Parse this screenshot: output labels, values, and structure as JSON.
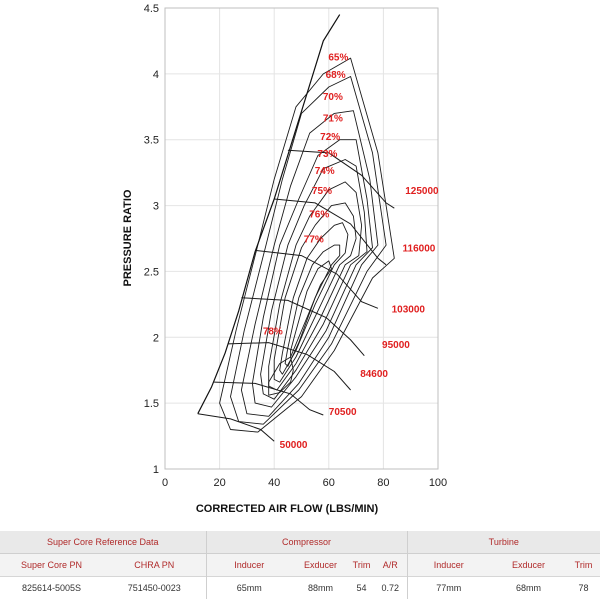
{
  "chart_data": {
    "type": "line",
    "title": "",
    "xlabel": "CORRECTED AIR FLOW (LBS/MIN)",
    "ylabel": "PRESSURE RATIO",
    "xlim": [
      0,
      100
    ],
    "ylim": [
      1,
      4.5
    ],
    "xticks": [
      0,
      20,
      40,
      60,
      80,
      100
    ],
    "yticks": [
      1,
      1.5,
      2,
      2.5,
      3,
      3.5,
      4,
      4.5
    ],
    "grid": true,
    "surge_line": [
      [
        12,
        1.42
      ],
      [
        17,
        1.62
      ],
      [
        22,
        1.88
      ],
      [
        27,
        2.2
      ],
      [
        33,
        2.65
      ],
      [
        40,
        3.05
      ],
      [
        46,
        3.45
      ],
      [
        52,
        3.85
      ],
      [
        58,
        4.25
      ],
      [
        64,
        4.45
      ]
    ],
    "speed_lines": [
      {
        "label": "50000",
        "points": [
          [
            12,
            1.42
          ],
          [
            24,
            1.38
          ],
          [
            35,
            1.3
          ],
          [
            40,
            1.21
          ]
        ]
      },
      {
        "label": "70500",
        "points": [
          [
            18,
            1.66
          ],
          [
            33,
            1.65
          ],
          [
            46,
            1.57
          ],
          [
            53,
            1.45
          ],
          [
            58,
            1.41
          ]
        ]
      },
      {
        "label": "84600",
        "points": [
          [
            23,
            1.95
          ],
          [
            38,
            1.96
          ],
          [
            52,
            1.87
          ],
          [
            62,
            1.74
          ],
          [
            68,
            1.6
          ]
        ]
      },
      {
        "label": "95000",
        "points": [
          [
            28,
            2.3
          ],
          [
            45,
            2.28
          ],
          [
            59,
            2.15
          ],
          [
            68,
            1.98
          ],
          [
            73,
            1.86
          ]
        ]
      },
      {
        "label": "103000",
        "points": [
          [
            33,
            2.66
          ],
          [
            50,
            2.62
          ],
          [
            63,
            2.48
          ],
          [
            72,
            2.27
          ],
          [
            78,
            2.22
          ]
        ]
      },
      {
        "label": "116000",
        "points": [
          [
            40,
            3.05
          ],
          [
            55,
            3.02
          ],
          [
            68,
            2.86
          ],
          [
            78,
            2.6
          ],
          [
            81,
            2.55
          ]
        ]
      },
      {
        "label": "125000",
        "points": [
          [
            45,
            3.42
          ],
          [
            60,
            3.4
          ],
          [
            72,
            3.23
          ],
          [
            81,
            3.02
          ],
          [
            84,
            2.98
          ]
        ]
      }
    ],
    "efficiency_islands": [
      {
        "label": "65%",
        "points": [
          [
            48,
            3.75
          ],
          [
            58,
            4.0
          ],
          [
            68,
            4.12
          ],
          [
            78,
            3.4
          ],
          [
            84,
            2.6
          ],
          [
            76,
            2.45
          ],
          [
            62,
            1.9
          ],
          [
            50,
            1.55
          ],
          [
            34,
            1.28
          ],
          [
            24,
            1.3
          ],
          [
            20,
            1.5
          ],
          [
            26,
            2.05
          ],
          [
            34,
            2.7
          ],
          [
            40,
            3.2
          ]
        ]
      },
      {
        "label": "68%",
        "points": [
          [
            50,
            3.7
          ],
          [
            60,
            3.9
          ],
          [
            68,
            3.98
          ],
          [
            76,
            3.4
          ],
          [
            81,
            2.7
          ],
          [
            74,
            2.5
          ],
          [
            61,
            1.95
          ],
          [
            49,
            1.6
          ],
          [
            36,
            1.34
          ],
          [
            27,
            1.36
          ],
          [
            24,
            1.55
          ],
          [
            29,
            2.05
          ],
          [
            37,
            2.7
          ],
          [
            43,
            3.2
          ]
        ]
      },
      {
        "label": "70%",
        "points": [
          [
            53,
            3.55
          ],
          [
            62,
            3.7
          ],
          [
            69,
            3.72
          ],
          [
            75,
            3.2
          ],
          [
            78,
            2.7
          ],
          [
            72,
            2.55
          ],
          [
            60,
            2.0
          ],
          [
            49,
            1.65
          ],
          [
            38,
            1.4
          ],
          [
            30,
            1.42
          ],
          [
            28,
            1.6
          ],
          [
            33,
            2.1
          ],
          [
            40,
            2.7
          ],
          [
            46,
            3.15
          ]
        ]
      },
      {
        "label": "71%",
        "points": [
          [
            56,
            3.38
          ],
          [
            64,
            3.5
          ],
          [
            70,
            3.5
          ],
          [
            74,
            3.05
          ],
          [
            76,
            2.68
          ],
          [
            70,
            2.55
          ],
          [
            59,
            2.05
          ],
          [
            48,
            1.7
          ],
          [
            39,
            1.47
          ],
          [
            33,
            1.5
          ],
          [
            32,
            1.65
          ],
          [
            36,
            2.15
          ],
          [
            42,
            2.7
          ],
          [
            49,
            3.05
          ]
        ]
      },
      {
        "label": "72%",
        "points": [
          [
            58,
            3.28
          ],
          [
            66,
            3.35
          ],
          [
            70,
            3.3
          ],
          [
            73,
            2.95
          ],
          [
            74,
            2.65
          ],
          [
            68,
            2.55
          ],
          [
            58,
            2.1
          ],
          [
            48,
            1.75
          ],
          [
            40,
            1.53
          ],
          [
            36,
            1.57
          ],
          [
            35,
            1.72
          ],
          [
            39,
            2.2
          ],
          [
            45,
            2.7
          ],
          [
            51,
            3.0
          ]
        ]
      },
      {
        "label": "73%",
        "points": [
          [
            60,
            3.12
          ],
          [
            66,
            3.18
          ],
          [
            70,
            3.1
          ],
          [
            72,
            2.85
          ],
          [
            71,
            2.62
          ],
          [
            66,
            2.55
          ],
          [
            57,
            2.15
          ],
          [
            48,
            1.8
          ],
          [
            41,
            1.6
          ],
          [
            38,
            1.63
          ],
          [
            38,
            1.78
          ],
          [
            42,
            2.25
          ],
          [
            48,
            2.7
          ],
          [
            53,
            2.92
          ]
        ]
      },
      {
        "label": "74%",
        "points": [
          [
            61,
            3.0
          ],
          [
            66,
            3.02
          ],
          [
            69,
            2.92
          ],
          [
            70,
            2.75
          ],
          [
            68,
            2.62
          ],
          [
            64,
            2.55
          ],
          [
            56,
            2.2
          ],
          [
            48,
            1.85
          ],
          [
            42,
            1.66
          ],
          [
            40,
            1.68
          ],
          [
            40,
            1.83
          ],
          [
            44,
            2.3
          ],
          [
            50,
            2.68
          ],
          [
            55,
            2.85
          ]
        ]
      },
      {
        "label": "75%",
        "points": [
          [
            62,
            2.85
          ],
          [
            65,
            2.87
          ],
          [
            67,
            2.78
          ],
          [
            66,
            2.64
          ],
          [
            62,
            2.55
          ],
          [
            55,
            2.25
          ],
          [
            48,
            1.9
          ],
          [
            43,
            1.72
          ],
          [
            42,
            1.75
          ],
          [
            43,
            1.88
          ],
          [
            47,
            2.3
          ],
          [
            52,
            2.6
          ],
          [
            57,
            2.75
          ]
        ]
      },
      {
        "label": "76%",
        "points": [
          [
            62,
            2.7
          ],
          [
            64,
            2.7
          ],
          [
            64,
            2.62
          ],
          [
            61,
            2.55
          ],
          [
            55,
            2.3
          ],
          [
            49,
            1.96
          ],
          [
            45,
            1.78
          ],
          [
            44,
            1.8
          ],
          [
            45,
            1.92
          ],
          [
            49,
            2.3
          ],
          [
            54,
            2.55
          ],
          [
            58,
            2.65
          ]
        ]
      },
      {
        "label": "77%",
        "points": [
          [
            60,
            2.58
          ],
          [
            61,
            2.52
          ],
          [
            57,
            2.4
          ],
          [
            52,
            2.15
          ],
          [
            48,
            1.95
          ],
          [
            46,
            1.85
          ],
          [
            46,
            1.9
          ],
          [
            48,
            2.05
          ],
          [
            52,
            2.35
          ],
          [
            56,
            2.52
          ]
        ]
      },
      {
        "label": "78%",
        "points": [
          [
            42,
            1.58
          ],
          [
            46,
            1.66
          ],
          [
            47,
            1.75
          ],
          [
            46,
            1.85
          ],
          [
            42,
            1.8
          ],
          [
            38,
            1.66
          ],
          [
            38,
            1.56
          ]
        ]
      }
    ],
    "efficiency_label_pos": [
      {
        "label": "65%",
        "x": 63.5,
        "y": 4.13
      },
      {
        "label": "68%",
        "x": 62.5,
        "y": 4.0
      },
      {
        "label": "70%",
        "x": 61.5,
        "y": 3.83
      },
      {
        "label": "71%",
        "x": 61.5,
        "y": 3.67
      },
      {
        "label": "72%",
        "x": 60.5,
        "y": 3.53
      },
      {
        "label": "73%",
        "x": 59.5,
        "y": 3.4
      },
      {
        "label": "74%",
        "x": 58.5,
        "y": 3.27
      },
      {
        "label": "75%",
        "x": 57.5,
        "y": 3.12
      },
      {
        "label": "76%",
        "x": 56.5,
        "y": 2.94
      },
      {
        "label": "77%",
        "x": 54.5,
        "y": 2.75
      },
      {
        "label": "78%",
        "x": 39.5,
        "y": 2.05
      }
    ],
    "speed_label_pos": [
      {
        "label": "125000",
        "x": 88,
        "y": 3.12
      },
      {
        "label": "116000",
        "x": 87,
        "y": 2.68
      },
      {
        "label": "103000",
        "x": 83,
        "y": 2.22
      },
      {
        "label": "95000",
        "x": 79.5,
        "y": 1.95
      },
      {
        "label": "84600",
        "x": 71.5,
        "y": 1.73
      },
      {
        "label": "70500",
        "x": 60,
        "y": 1.44
      },
      {
        "label": "50000",
        "x": 42,
        "y": 1.19
      }
    ]
  },
  "table": {
    "group_headers": [
      "Super Core Reference Data",
      "Compressor",
      "Turbine"
    ],
    "column_headers": [
      "Super Core PN",
      "CHRA PN",
      "Inducer",
      "Exducer",
      "Trim",
      "A/R",
      "Inducer",
      "Exducer",
      "Trim"
    ],
    "values": [
      "825614-5005S",
      "751450-0023",
      "65mm",
      "88mm",
      "54",
      "0.72",
      "77mm",
      "68mm",
      "78"
    ]
  }
}
